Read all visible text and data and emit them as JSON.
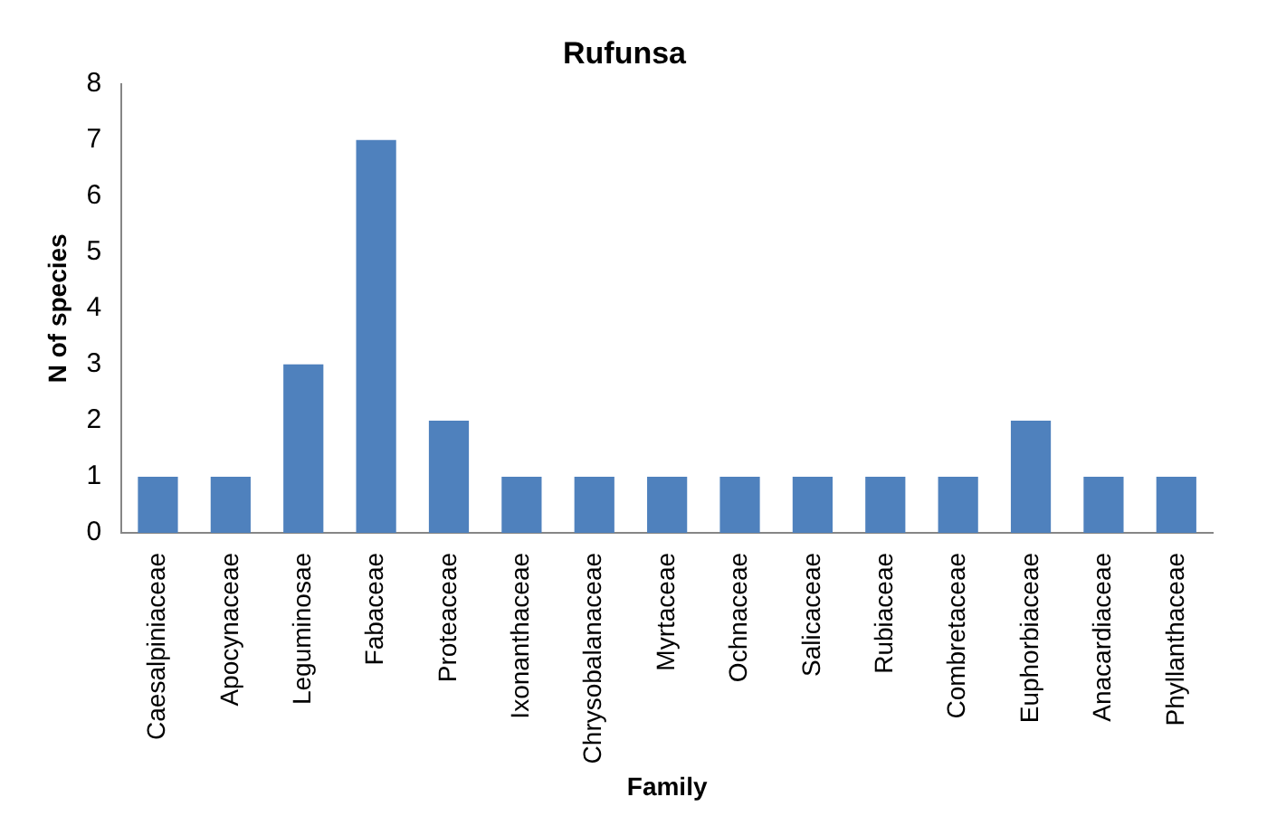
{
  "chart_data": {
    "type": "bar",
    "title": "Rufunsa",
    "xlabel": "Family",
    "ylabel": "N of species",
    "categories": [
      "Caesalpiniaceae",
      "Apocynaceae",
      "Leguminosae",
      "Fabaceae",
      "Proteaceae",
      "Ixonanthaceae",
      "Chrysobalanaceae",
      "Myrtaceae",
      "Ochnaceae",
      "Salicaceae",
      "Rubiaceae",
      "Combretaceae",
      "Euphorbiaceae",
      "Anacardiaceae",
      "Phyllanthaceae"
    ],
    "values": [
      1,
      1,
      3,
      7,
      2,
      1,
      1,
      1,
      1,
      1,
      1,
      1,
      2,
      1,
      1
    ],
    "color": "#4f81bd",
    "ylim": [
      0,
      8
    ],
    "yticks": [
      0,
      1,
      2,
      3,
      4,
      5,
      6,
      7,
      8
    ],
    "grid": false,
    "legend": false
  }
}
